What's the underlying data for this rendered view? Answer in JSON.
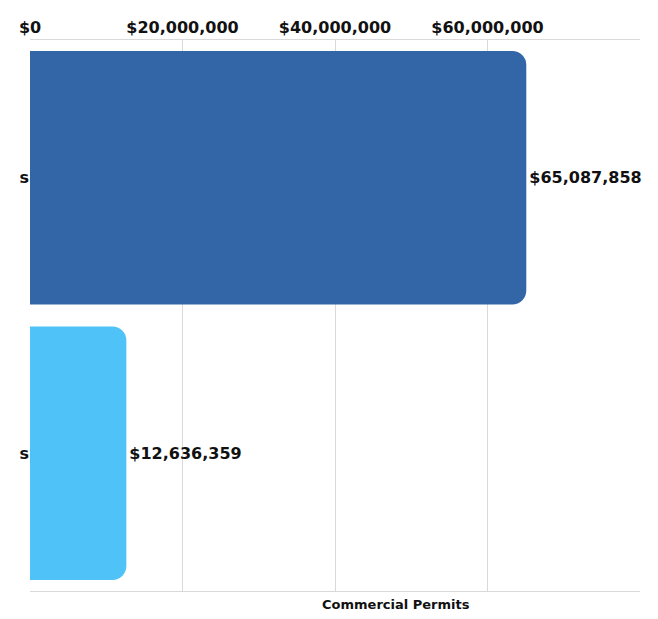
{
  "chart_data": {
    "type": "bar",
    "orientation": "horizontal",
    "categories": [
      "s",
      "s"
    ],
    "values": [
      65087858,
      12636359
    ],
    "value_labels": [
      "$65,087,858",
      "$12,636,359"
    ],
    "colors": [
      "#3366a6",
      "#4fc3f7"
    ],
    "data_labels": true,
    "xlim": [
      0,
      80000000
    ],
    "xticks": [
      {
        "value": 0,
        "label": "$0"
      },
      {
        "value": 20000000,
        "label": "$20,000,000"
      },
      {
        "value": 40000000,
        "label": "$40,000,000"
      },
      {
        "value": 60000000,
        "label": "$60,000,000"
      }
    ],
    "grid": true,
    "annotations": [
      "Commercial Permits"
    ]
  }
}
